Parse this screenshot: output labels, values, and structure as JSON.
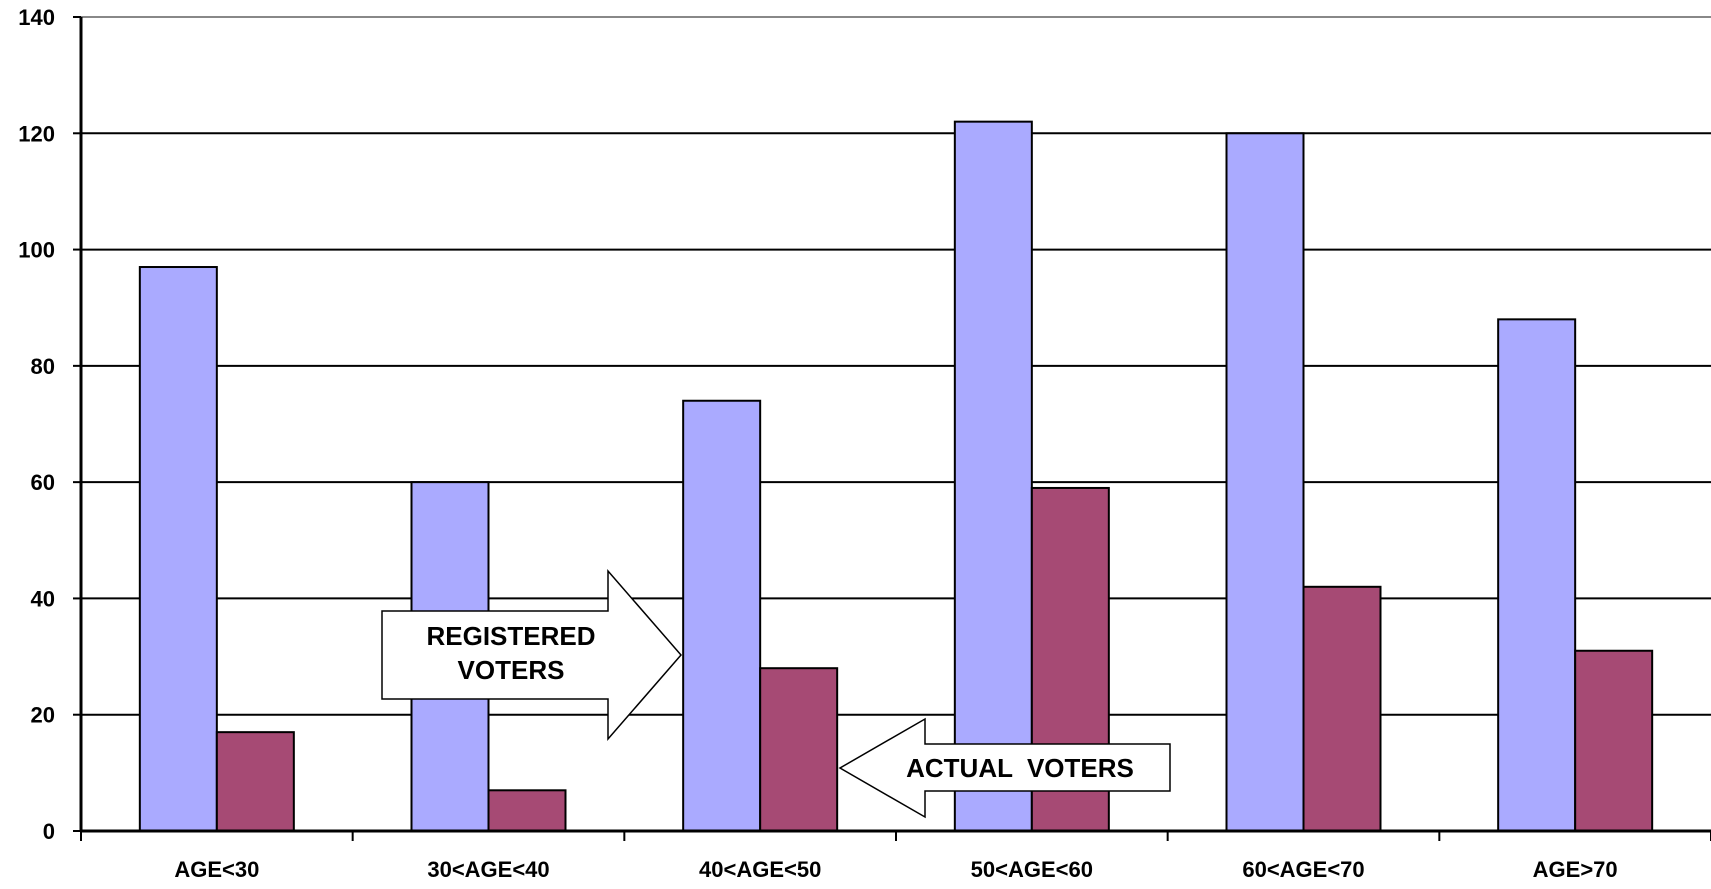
{
  "chart_data": {
    "type": "bar",
    "categories": [
      "AGE<30",
      "30<AGE<40",
      "40<AGE<50",
      "50<AGE<60",
      "60<AGE<70",
      "AGE>70"
    ],
    "series": [
      {
        "values": [
          97,
          60,
          74,
          122,
          120,
          88
        ],
        "color": "#aaaaff"
      },
      {
        "values": [
          17,
          7,
          28,
          59,
          42,
          31
        ],
        "color": "#a64a74"
      }
    ],
    "ylim": [
      0,
      140
    ],
    "yticks": [
      0,
      20,
      40,
      60,
      80,
      100,
      120,
      140
    ],
    "grid": true,
    "annotations": [
      {
        "id": "registered",
        "lines": [
          "REGISTERED",
          "VOTERS"
        ],
        "direction": "right"
      },
      {
        "id": "actual",
        "lines": [
          "ACTUAL  VOTERS"
        ],
        "direction": "left"
      }
    ]
  }
}
